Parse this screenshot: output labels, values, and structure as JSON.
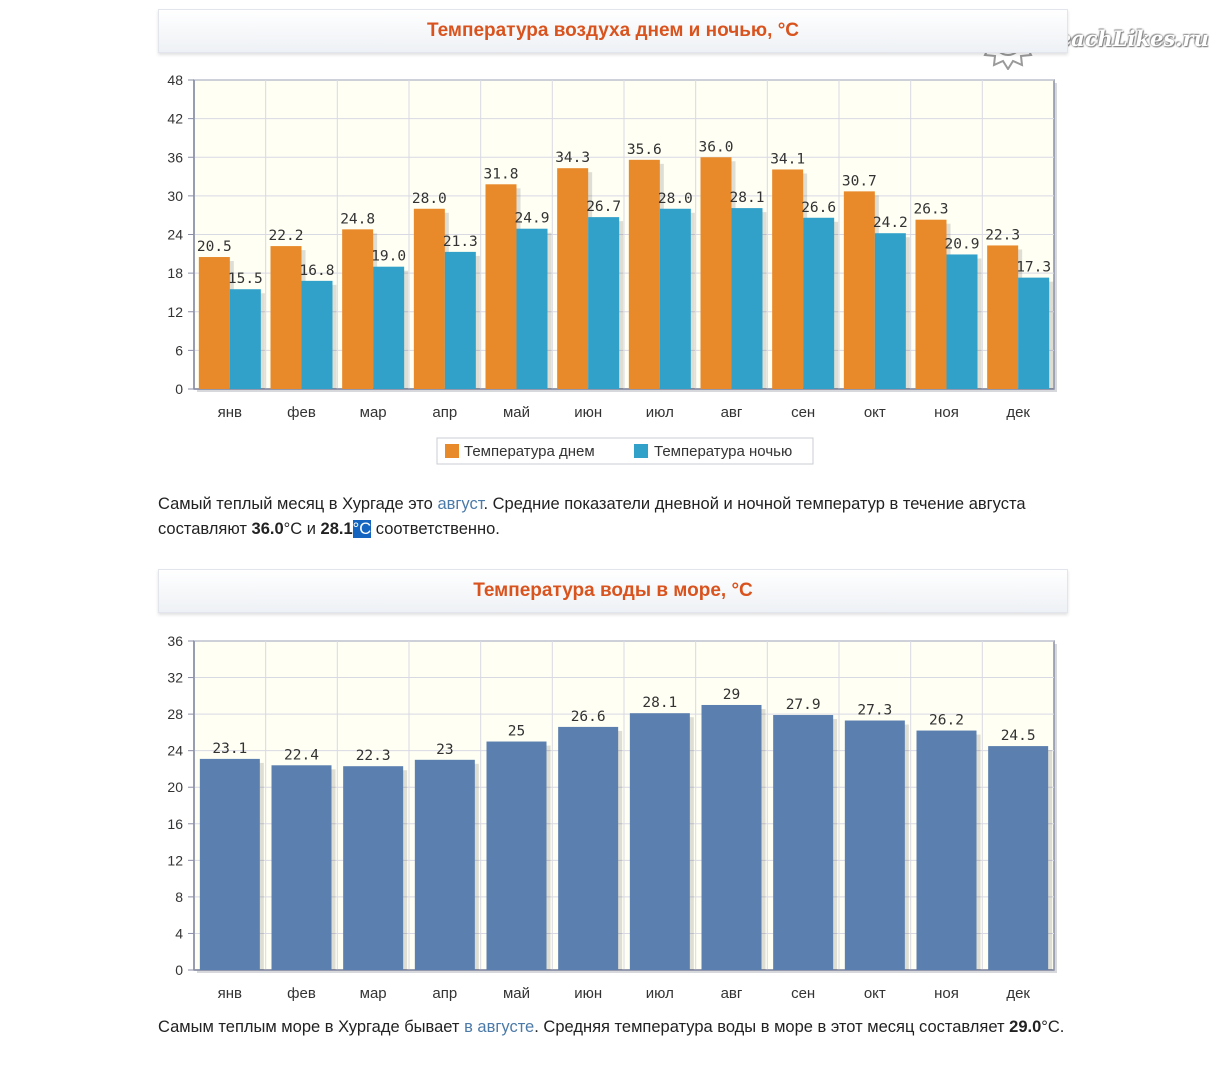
{
  "logo": {
    "text": "BeachLikes.ru"
  },
  "colors": {
    "title": "#d9531e",
    "day": "#e88a2a",
    "night": "#31a1c9",
    "water": "#5b7fae",
    "link": "#4c7aa8"
  },
  "air_chart": {
    "title": "Температура воздуха днем и ночью, °С",
    "legend": [
      "Температура днем",
      "Температура ночью"
    ]
  },
  "air_text": {
    "p1": "Самый теплый месяц в Хургаде это ",
    "link": "август",
    "p2": ". Средние показатели дневной и ночной температур в течение августа составляют ",
    "v1": "36.0",
    "p3": "°C и ",
    "v2": "28.1",
    "hl": "°C",
    "p4": " соответственно."
  },
  "water_chart": {
    "title": "Температура воды в море, °С"
  },
  "water_text": {
    "p1": "Самым теплым море в Хургаде бывает ",
    "link": "в августе",
    "p2": ". Средняя температура воды в море в этот месяц составляет ",
    "v1": "29.0",
    "p3": "°C."
  },
  "chart_data": [
    {
      "type": "bar",
      "title": "Температура воздуха днем и ночью, °С",
      "categories": [
        "янв",
        "фев",
        "мар",
        "апр",
        "май",
        "июн",
        "июл",
        "авг",
        "сен",
        "окт",
        "ноя",
        "дек"
      ],
      "series": [
        {
          "name": "Температура днем",
          "values": [
            20.5,
            22.2,
            24.8,
            28.0,
            31.8,
            34.3,
            35.6,
            36.0,
            34.1,
            30.7,
            26.3,
            22.3
          ],
          "labels": [
            "20.5",
            "22.2",
            "24.8",
            "28.0",
            "31.8",
            "34.3",
            "35.6",
            "36.0",
            "34.1",
            "30.7",
            "26.3",
            "22.3"
          ]
        },
        {
          "name": "Температура ночью",
          "values": [
            15.5,
            16.8,
            19.0,
            21.3,
            24.9,
            26.7,
            28.0,
            28.1,
            26.6,
            24.2,
            20.9,
            17.3
          ],
          "labels": [
            "15.5",
            "16.8",
            "19.0",
            "21.3",
            "24.9",
            "26.7",
            "28.0",
            "28.1",
            "26.6",
            "24.2",
            "20.9",
            "17.3"
          ]
        }
      ],
      "ylim": [
        0,
        48
      ],
      "yticks": [
        0,
        6,
        12,
        18,
        24,
        30,
        36,
        42,
        48
      ],
      "grid": true,
      "legend": "bottom-center"
    },
    {
      "type": "bar",
      "title": "Температура воды в море, °С",
      "categories": [
        "янв",
        "фев",
        "мар",
        "апр",
        "май",
        "июн",
        "июл",
        "авг",
        "сен",
        "окт",
        "ноя",
        "дек"
      ],
      "series": [
        {
          "values": [
            23.1,
            22.4,
            22.3,
            23,
            25,
            26.6,
            28.1,
            29,
            27.9,
            27.3,
            26.2,
            24.5
          ],
          "labels": [
            "23.1",
            "22.4",
            "22.3",
            "23",
            "25",
            "26.6",
            "28.1",
            "29",
            "27.9",
            "27.3",
            "26.2",
            "24.5"
          ]
        }
      ],
      "ylim": [
        0,
        36
      ],
      "yticks": [
        0,
        4,
        8,
        12,
        16,
        20,
        24,
        28,
        32,
        36
      ],
      "grid": true
    }
  ]
}
